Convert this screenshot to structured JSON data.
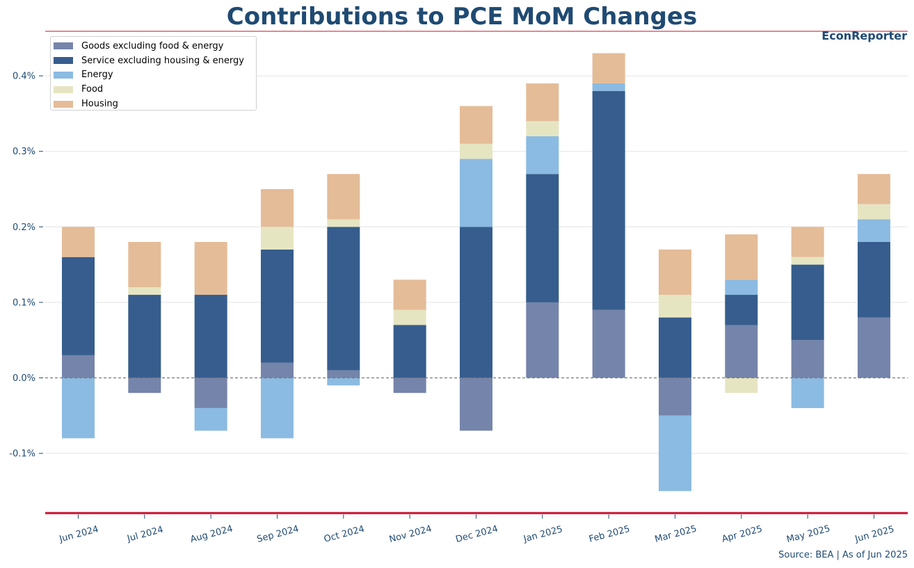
{
  "title": "Contributions to PCE MoM Changes",
  "brand": "EconReporter",
  "source_note": "Source: BEA | As of Jun 2025",
  "colors": {
    "title": "#1f4a72",
    "accent_line": "#c8102e",
    "goods": "#7584aa",
    "services": "#365d8d",
    "energy": "#8bbbe2",
    "food": "#e6e5c2",
    "housing": "#e4bc98"
  },
  "chart_data": {
    "type": "bar",
    "stacked": true,
    "title": "Contributions to PCE MoM Changes",
    "xlabel": "",
    "ylabel": "",
    "ylim": [
      -0.0018,
      0.0046
    ],
    "yticks": [
      -0.001,
      0,
      0.001,
      0.002,
      0.003,
      0.004
    ],
    "ytick_labels": [
      "-0.1%",
      "0.0%",
      "0.1%",
      "0.2%",
      "0.3%",
      "0.4%"
    ],
    "grid": true,
    "zero_line": "dashed",
    "legend_position": "top-left",
    "categories": [
      "Jun 2024",
      "Jul 2024",
      "Aug 2024",
      "Sep 2024",
      "Oct 2024",
      "Nov 2024",
      "Dec 2024",
      "Jan 2025",
      "Feb 2025",
      "Mar 2025",
      "Apr 2025",
      "May 2025",
      "Jun 2025"
    ],
    "series": [
      {
        "name": "Goods excluding food & energy",
        "color_key": "goods",
        "values": [
          0.0003,
          -0.0002,
          -0.0004,
          0.0002,
          0.0001,
          -0.0002,
          -0.0007,
          0.001,
          0.0009,
          -0.0005,
          0.0007,
          0.0005,
          0.0008
        ]
      },
      {
        "name": "Service excluding housing & energy",
        "color_key": "services",
        "values": [
          0.0013,
          0.0011,
          0.0011,
          0.0015,
          0.0019,
          0.0007,
          0.002,
          0.0017,
          0.0029,
          0.0008,
          0.0004,
          0.001,
          0.001
        ]
      },
      {
        "name": "Energy",
        "color_key": "energy",
        "values": [
          -0.0008,
          0.0,
          -0.0003,
          -0.0008,
          -0.0001,
          0.0,
          0.0009,
          0.0005,
          0.0001,
          -0.001,
          0.0002,
          -0.0004,
          0.0003
        ]
      },
      {
        "name": "Food",
        "color_key": "food",
        "values": [
          0.0,
          0.0001,
          0.0,
          0.0003,
          0.0001,
          0.0002,
          0.0002,
          0.0002,
          0.0,
          0.0003,
          -0.0002,
          0.0001,
          0.0002
        ]
      },
      {
        "name": "Housing",
        "color_key": "housing",
        "values": [
          0.0004,
          0.0006,
          0.0007,
          0.0005,
          0.0006,
          0.0004,
          0.0005,
          0.0005,
          0.0004,
          0.0006,
          0.0006,
          0.0004,
          0.0004
        ]
      }
    ]
  }
}
